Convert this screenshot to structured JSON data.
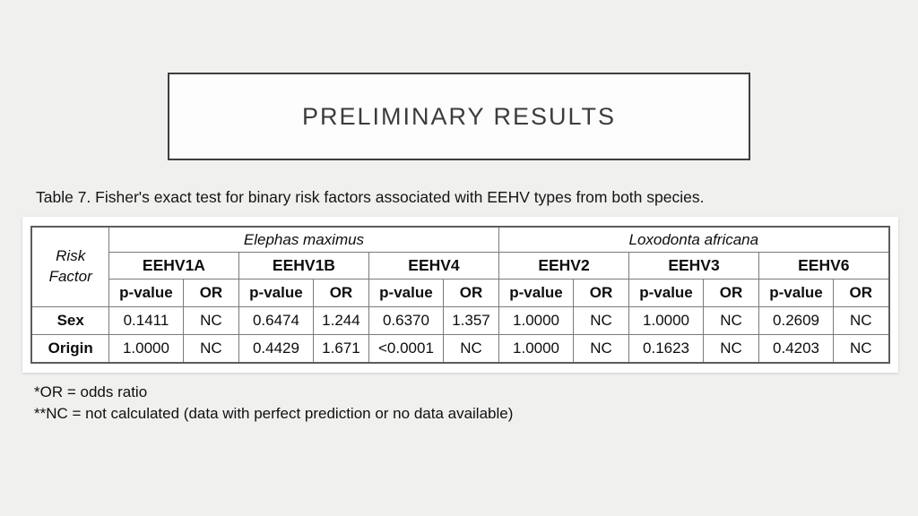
{
  "slide": {
    "title": "PRELIMINARY RESULTS",
    "caption": "Table 7. Fisher's exact test for binary risk factors associated with EEHV types from both species.",
    "footnotes": [
      "*OR = odds ratio",
      "**NC = not calculated (data with perfect prediction or no data available)"
    ],
    "colors": {
      "background": "#f0f0ef",
      "title_box_border": "#3e3e3e",
      "table_border": "#7a7a7a",
      "text": "#141414"
    }
  },
  "table": {
    "row_header": {
      "line1": "Risk",
      "line2": "Factor"
    },
    "groups": [
      {
        "species": "Elephas maximus",
        "types": [
          "EEHV1A",
          "EEHV1B",
          "EEHV4"
        ]
      },
      {
        "species": "Loxodonta africana",
        "types": [
          "EEHV2",
          "EEHV3",
          "EEHV6"
        ]
      }
    ],
    "measure_headers": [
      "p-value",
      "OR"
    ],
    "rows": [
      {
        "factor": "Sex",
        "values": [
          "0.1411",
          "NC",
          "0.6474",
          "1.244",
          "0.6370",
          "1.357",
          "1.0000",
          "NC",
          "1.0000",
          "NC",
          "0.2609",
          "NC"
        ]
      },
      {
        "factor": "Origin",
        "values": [
          "1.0000",
          "NC",
          "0.4429",
          "1.671",
          "<0.0001",
          "NC",
          "1.0000",
          "NC",
          "0.1623",
          "NC",
          "0.4203",
          "NC"
        ]
      }
    ]
  }
}
